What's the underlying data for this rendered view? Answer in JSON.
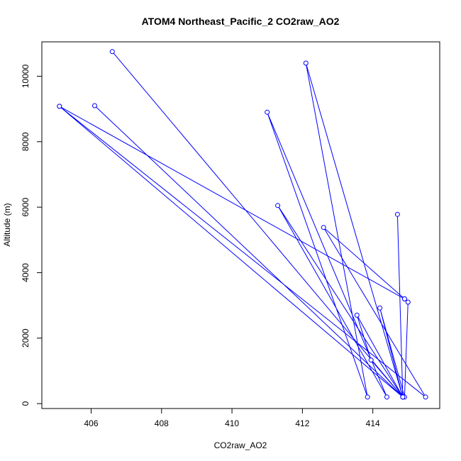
{
  "chart_data": {
    "type": "line",
    "title": "ATOM4 Northeast_Pacific_2 CO2raw_AO2",
    "xlabel": "CO2raw_AO2",
    "ylabel": "Altitude (m)",
    "xlim": [
      404.6,
      415.9
    ],
    "ylim": [
      -150,
      11050
    ],
    "xticks": [
      406,
      408,
      410,
      412,
      414
    ],
    "yticks": [
      0,
      2000,
      4000,
      6000,
      8000,
      10000
    ],
    "legend": "none",
    "grid": false,
    "line_color": "#0000ff",
    "marker": "open-circle",
    "series": [
      {
        "x": [
          406.6,
          414.85,
          412.1,
          413.85,
          411.0,
          414.4,
          411.3,
          414.85,
          406.1,
          414.85,
          414.7,
          414.85,
          405.1,
          414.9,
          412.6,
          415.5,
          405.1,
          414.9,
          415.0,
          414.9,
          414.2,
          414.85,
          413.95,
          413.55,
          414.85
        ],
        "y": [
          10750,
          200,
          10400,
          200,
          8900,
          200,
          6050,
          200,
          9100,
          200,
          5780,
          200,
          9080,
          3200,
          5380,
          200,
          9080,
          3200,
          3100,
          200,
          2920,
          200,
          1330,
          2700,
          200
        ]
      }
    ]
  }
}
